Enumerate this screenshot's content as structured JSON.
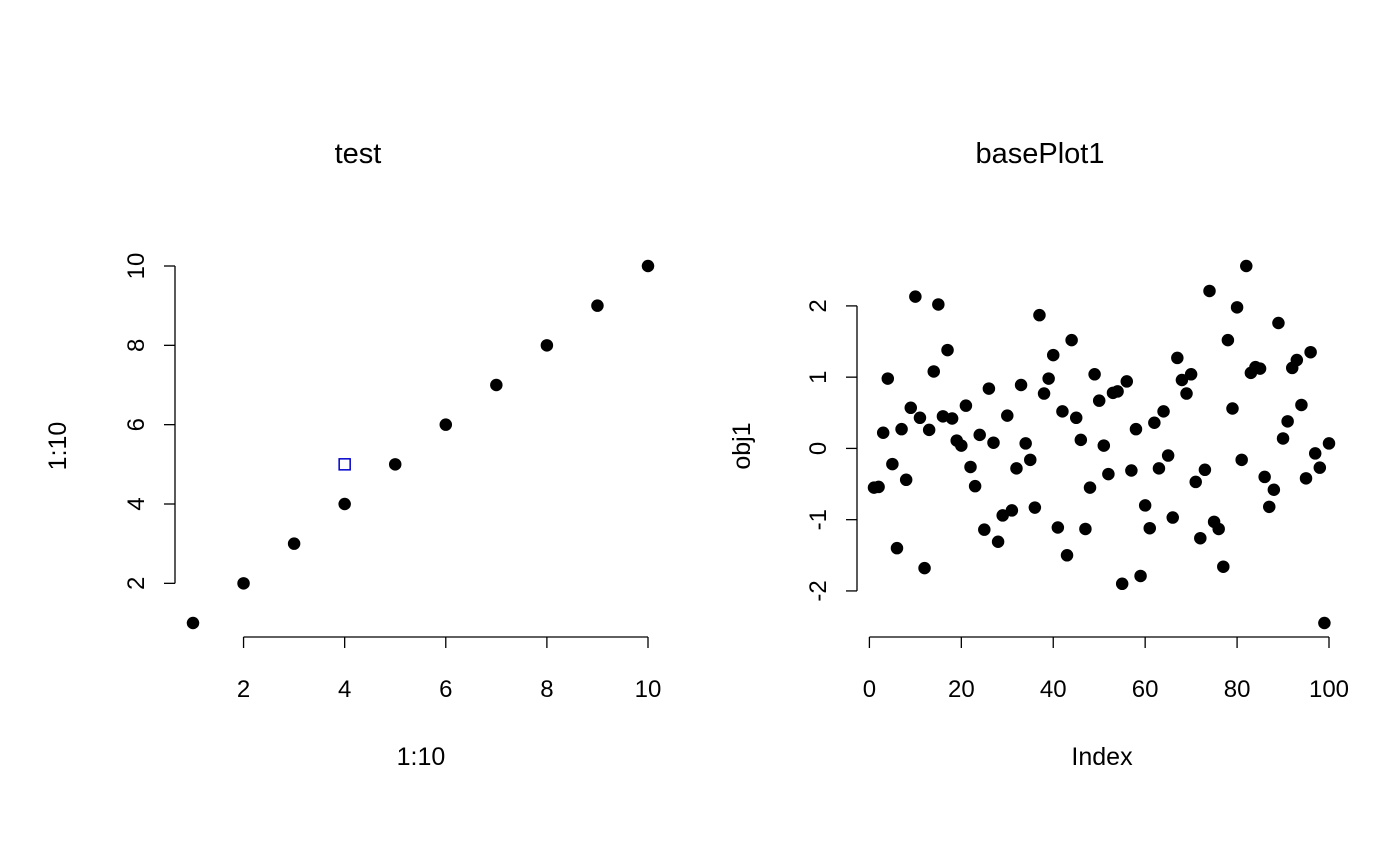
{
  "figure": {
    "background": "#ffffff"
  },
  "chart_data": [
    {
      "type": "scatter",
      "title": "test",
      "xlabel": "1:10",
      "ylabel": "1:10",
      "xlim": [
        1,
        10
      ],
      "ylim": [
        1,
        10
      ],
      "x_ticks": [
        2,
        4,
        6,
        8,
        10
      ],
      "y_ticks": [
        2,
        4,
        6,
        8,
        10
      ],
      "grid": false,
      "series": [
        {
          "marker": "filled-circle",
          "color": "#000000",
          "x": [
            1,
            2,
            3,
            4,
            5,
            6,
            7,
            8,
            9,
            10
          ],
          "y": [
            1,
            2,
            3,
            4,
            5,
            6,
            7,
            8,
            9,
            10
          ]
        },
        {
          "marker": "open-square",
          "color": "#0000cc",
          "x": [
            4
          ],
          "y": [
            5
          ]
        }
      ]
    },
    {
      "type": "scatter",
      "title": "basePlot1",
      "xlabel": "Index",
      "ylabel": "obj1",
      "xlim": [
        1,
        100
      ],
      "ylim": [
        -2.45,
        2.56
      ],
      "x_ticks": [
        0,
        20,
        40,
        60,
        80,
        100
      ],
      "y_ticks": [
        -2,
        -1,
        0,
        1,
        2
      ],
      "grid": false,
      "series": [
        {
          "marker": "filled-circle",
          "color": "#000000",
          "x": [
            1,
            2,
            3,
            4,
            5,
            6,
            7,
            8,
            9,
            10,
            11,
            12,
            13,
            14,
            15,
            16,
            17,
            18,
            19,
            20,
            21,
            22,
            23,
            24,
            25,
            26,
            27,
            28,
            29,
            30,
            31,
            32,
            33,
            34,
            35,
            36,
            37,
            38,
            39,
            40,
            41,
            42,
            43,
            44,
            45,
            46,
            47,
            48,
            49,
            50,
            51,
            52,
            53,
            54,
            55,
            56,
            57,
            58,
            59,
            60,
            61,
            62,
            63,
            64,
            65,
            66,
            67,
            68,
            69,
            70,
            71,
            72,
            73,
            74,
            75,
            76,
            77,
            78,
            79,
            80,
            81,
            82,
            83,
            84,
            85,
            86,
            87,
            88,
            89,
            90,
            91,
            92,
            93,
            94,
            95,
            96,
            97,
            98,
            99,
            100
          ],
          "y": [
            -0.55,
            -0.54,
            0.22,
            0.98,
            -0.22,
            -1.4,
            0.27,
            -0.44,
            0.57,
            2.13,
            0.43,
            -1.68,
            0.26,
            1.08,
            2.02,
            0.45,
            1.38,
            0.42,
            0.11,
            0.04,
            0.6,
            -0.26,
            -0.53,
            0.19,
            -1.14,
            0.84,
            0.08,
            -1.31,
            -0.94,
            0.46,
            -0.87,
            -0.28,
            0.89,
            0.07,
            -0.16,
            -0.83,
            1.87,
            0.77,
            0.98,
            1.31,
            -1.11,
            0.52,
            -1.5,
            1.52,
            0.43,
            0.12,
            -1.13,
            -0.55,
            1.04,
            0.67,
            0.04,
            -0.36,
            0.78,
            0.8,
            -1.9,
            0.94,
            -0.31,
            0.27,
            -1.79,
            -0.8,
            -1.12,
            0.36,
            -0.28,
            0.52,
            -0.1,
            -0.97,
            1.27,
            0.96,
            0.77,
            1.04,
            -0.47,
            -1.26,
            -0.3,
            2.21,
            -1.03,
            -1.13,
            -1.66,
            1.52,
            0.56,
            1.98,
            -0.16,
            2.56,
            1.06,
            1.14,
            1.12,
            -0.4,
            -0.82,
            -0.58,
            1.76,
            0.14,
            0.38,
            1.13,
            1.24,
            0.61,
            -0.42,
            1.35,
            -0.07,
            -0.27,
            -2.45,
            0.07
          ]
        }
      ]
    }
  ]
}
